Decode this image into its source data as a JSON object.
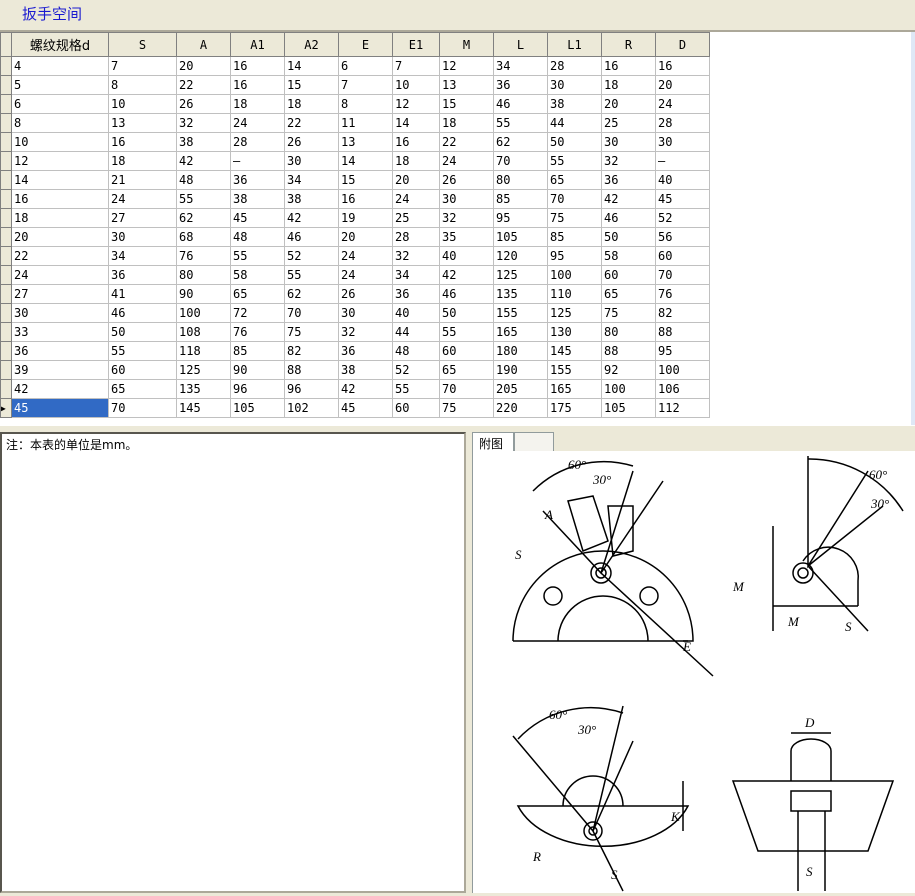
{
  "title": "扳手空间",
  "table": {
    "headers": [
      "螺纹规格d",
      "S",
      "A",
      "A1",
      "A2",
      "E",
      "E1",
      "M",
      "L",
      "L1",
      "R",
      "D"
    ],
    "rows": [
      [
        "4",
        "7",
        "20",
        "16",
        "14",
        "6",
        "7",
        "12",
        "34",
        "28",
        "16",
        "16"
      ],
      [
        "5",
        "8",
        "22",
        "16",
        "15",
        "7",
        "10",
        "13",
        "36",
        "30",
        "18",
        "20"
      ],
      [
        "6",
        "10",
        "26",
        "18",
        "18",
        "8",
        "12",
        "15",
        "46",
        "38",
        "20",
        "24"
      ],
      [
        "8",
        "13",
        "32",
        "24",
        "22",
        "11",
        "14",
        "18",
        "55",
        "44",
        "25",
        "28"
      ],
      [
        "10",
        "16",
        "38",
        "28",
        "26",
        "13",
        "16",
        "22",
        "62",
        "50",
        "30",
        "30"
      ],
      [
        "12",
        "18",
        "42",
        "—",
        "30",
        "14",
        "18",
        "24",
        "70",
        "55",
        "32",
        "—"
      ],
      [
        "14",
        "21",
        "48",
        "36",
        "34",
        "15",
        "20",
        "26",
        "80",
        "65",
        "36",
        "40"
      ],
      [
        "16",
        "24",
        "55",
        "38",
        "38",
        "16",
        "24",
        "30",
        "85",
        "70",
        "42",
        "45"
      ],
      [
        "18",
        "27",
        "62",
        "45",
        "42",
        "19",
        "25",
        "32",
        "95",
        "75",
        "46",
        "52"
      ],
      [
        "20",
        "30",
        "68",
        "48",
        "46",
        "20",
        "28",
        "35",
        "105",
        "85",
        "50",
        "56"
      ],
      [
        "22",
        "34",
        "76",
        "55",
        "52",
        "24",
        "32",
        "40",
        "120",
        "95",
        "58",
        "60"
      ],
      [
        "24",
        "36",
        "80",
        "58",
        "55",
        "24",
        "34",
        "42",
        "125",
        "100",
        "60",
        "70"
      ],
      [
        "27",
        "41",
        "90",
        "65",
        "62",
        "26",
        "36",
        "46",
        "135",
        "110",
        "65",
        "76"
      ],
      [
        "30",
        "46",
        "100",
        "72",
        "70",
        "30",
        "40",
        "50",
        "155",
        "125",
        "75",
        "82"
      ],
      [
        "33",
        "50",
        "108",
        "76",
        "75",
        "32",
        "44",
        "55",
        "165",
        "130",
        "80",
        "88"
      ],
      [
        "36",
        "55",
        "118",
        "85",
        "82",
        "36",
        "48",
        "60",
        "180",
        "145",
        "88",
        "95"
      ],
      [
        "39",
        "60",
        "125",
        "90",
        "88",
        "38",
        "52",
        "65",
        "190",
        "155",
        "92",
        "100"
      ],
      [
        "42",
        "65",
        "135",
        "96",
        "96",
        "42",
        "55",
        "70",
        "205",
        "165",
        "100",
        "106"
      ],
      [
        "45",
        "70",
        "145",
        "105",
        "102",
        "45",
        "60",
        "75",
        "220",
        "175",
        "105",
        "112"
      ]
    ],
    "selected_row": 18
  },
  "note": "注：本表的单位是mm。",
  "tabs": [
    "附图",
    ""
  ],
  "figure_labels": {
    "a60": "60°",
    "a30": "30°",
    "A": "A",
    "S": "S",
    "E": "E",
    "M": "M",
    "K": "K",
    "R": "R",
    "D": "D"
  },
  "colors": {
    "title": "#1b1bd0",
    "selection": "#316ac5"
  }
}
